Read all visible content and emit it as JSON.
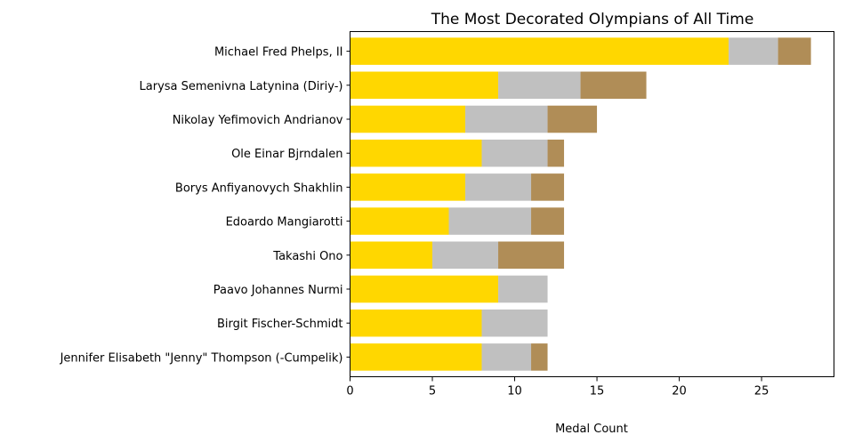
{
  "chart_data": {
    "type": "bar",
    "orientation": "horizontal",
    "stacked": true,
    "title": "The Most Decorated Olympians of All Time",
    "xlabel": "Medal Count",
    "ylabel": "",
    "xlim": [
      0,
      29.4
    ],
    "xticks": [
      0,
      5,
      10,
      15,
      20,
      25
    ],
    "grid": false,
    "legend": "none",
    "categories": [
      "Michael Fred Phelps, II",
      "Larysa Semenivna Latynina (Diriy-)",
      "Nikolay Yefimovich Andrianov",
      "Ole Einar Bjrndalen",
      "Borys Anfiyanovych Shakhlin",
      "Edoardo Mangiarotti",
      "Takashi Ono",
      "Paavo Johannes Nurmi",
      "Birgit Fischer-Schmidt",
      "Jennifer Elisabeth \"Jenny\" Thompson (-Cumpelik)"
    ],
    "series": [
      {
        "color": "#ffd700",
        "values": [
          23,
          9,
          7,
          8,
          7,
          6,
          5,
          9,
          8,
          8
        ]
      },
      {
        "color": "#c0c0c0",
        "values": [
          3,
          5,
          5,
          4,
          4,
          5,
          4,
          3,
          4,
          3
        ]
      },
      {
        "color": "#b08d57",
        "values": [
          2,
          4,
          3,
          1,
          2,
          2,
          4,
          0,
          0,
          1
        ]
      }
    ]
  }
}
